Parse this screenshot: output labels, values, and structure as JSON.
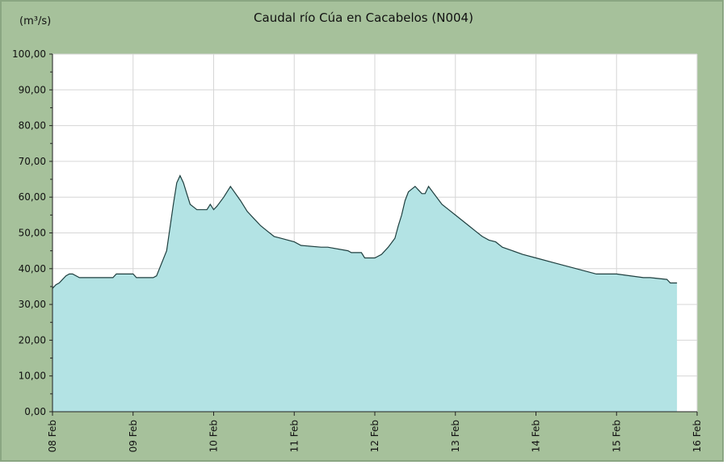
{
  "chart_data": {
    "type": "area",
    "title": "Caudal río Cúa en Cacabelos  (N004)",
    "ylabel": "(m³/s)",
    "xlabel": "",
    "ylim": [
      0,
      100
    ],
    "y_ticks": [
      "0,00",
      "10,00",
      "20,00",
      "30,00",
      "40,00",
      "50,00",
      "60,00",
      "70,00",
      "80,00",
      "90,00",
      "100,00"
    ],
    "x_ticks": [
      "08 Feb",
      "09 Feb",
      "10 Feb",
      "11 Feb",
      "12 Feb",
      "13 Feb",
      "14 Feb",
      "15 Feb",
      "16 Feb"
    ],
    "grid": true,
    "colors": {
      "fill": "#b3e3e4",
      "line": "#1f3f3f",
      "background": "#a6c19b",
      "plot": "#ffffff",
      "grid": "#d6d6d6"
    },
    "series": [
      {
        "x": [
          "08 Feb 00:00",
          "08 Feb 01:00",
          "08 Feb 02:00",
          "08 Feb 03:00",
          "08 Feb 04:00",
          "08 Feb 05:00",
          "08 Feb 06:00",
          "08 Feb 08:00",
          "08 Feb 12:00",
          "08 Feb 18:00",
          "08 Feb 19:00",
          "08 Feb 22:00",
          "09 Feb 00:00",
          "09 Feb 01:00",
          "09 Feb 06:00",
          "09 Feb 07:00",
          "09 Feb 10:00",
          "09 Feb 12:00",
          "09 Feb 13:00",
          "09 Feb 14:00",
          "09 Feb 15:00",
          "09 Feb 16:00",
          "09 Feb 17:00",
          "09 Feb 19:00",
          "09 Feb 20:00",
          "09 Feb 22:00",
          "09 Feb 23:00",
          "10 Feb 00:00",
          "10 Feb 01:00",
          "10 Feb 03:00",
          "10 Feb 05:00",
          "10 Feb 08:00",
          "10 Feb 10:00",
          "10 Feb 12:00",
          "10 Feb 14:00",
          "10 Feb 16:00",
          "10 Feb 18:00",
          "10 Feb 20:00",
          "11 Feb 00:00",
          "11 Feb 02:00",
          "11 Feb 08:00",
          "11 Feb 10:00",
          "11 Feb 16:00",
          "11 Feb 17:00",
          "11 Feb 20:00",
          "11 Feb 21:00",
          "12 Feb 00:00",
          "12 Feb 02:00",
          "12 Feb 04:00",
          "12 Feb 06:00",
          "12 Feb 07:00",
          "12 Feb 08:00",
          "12 Feb 09:00",
          "12 Feb 10:00",
          "12 Feb 12:00",
          "12 Feb 13:00",
          "12 Feb 14:00",
          "12 Feb 15:00",
          "12 Feb 16:00",
          "12 Feb 18:00",
          "12 Feb 20:00",
          "12 Feb 22:00",
          "13 Feb 00:00",
          "13 Feb 02:00",
          "13 Feb 04:00",
          "13 Feb 06:00",
          "13 Feb 08:00",
          "13 Feb 10:00",
          "13 Feb 12:00",
          "13 Feb 14:00",
          "13 Feb 17:00",
          "13 Feb 20:00",
          "14 Feb 00:00",
          "14 Feb 06:00",
          "14 Feb 12:00",
          "14 Feb 18:00",
          "15 Feb 00:00",
          "15 Feb 08:00",
          "15 Feb 10:00",
          "15 Feb 15:00",
          "15 Feb 16:00",
          "15 Feb 18:00"
        ],
        "values": [
          34.5,
          35.5,
          36,
          37,
          38,
          38.5,
          38.5,
          37.5,
          37.5,
          37.5,
          38.5,
          38.5,
          38.5,
          37.5,
          37.5,
          38,
          45,
          58,
          64,
          66,
          64,
          61,
          58,
          56.5,
          56.5,
          56.5,
          58,
          56.5,
          57.5,
          60,
          63,
          59,
          56,
          54,
          52,
          50.5,
          49,
          48.5,
          47.5,
          46.5,
          46,
          46,
          45,
          44.5,
          44.5,
          43,
          43,
          44,
          46,
          48.5,
          52,
          55,
          59,
          61.5,
          63,
          62,
          61,
          61,
          63,
          60.5,
          58,
          56.5,
          55,
          53.5,
          52,
          50.5,
          49,
          48,
          47.5,
          46,
          45,
          44,
          43,
          41.5,
          40,
          38.5,
          38.5,
          37.5,
          37.5,
          37,
          36,
          36
        ]
      }
    ]
  }
}
